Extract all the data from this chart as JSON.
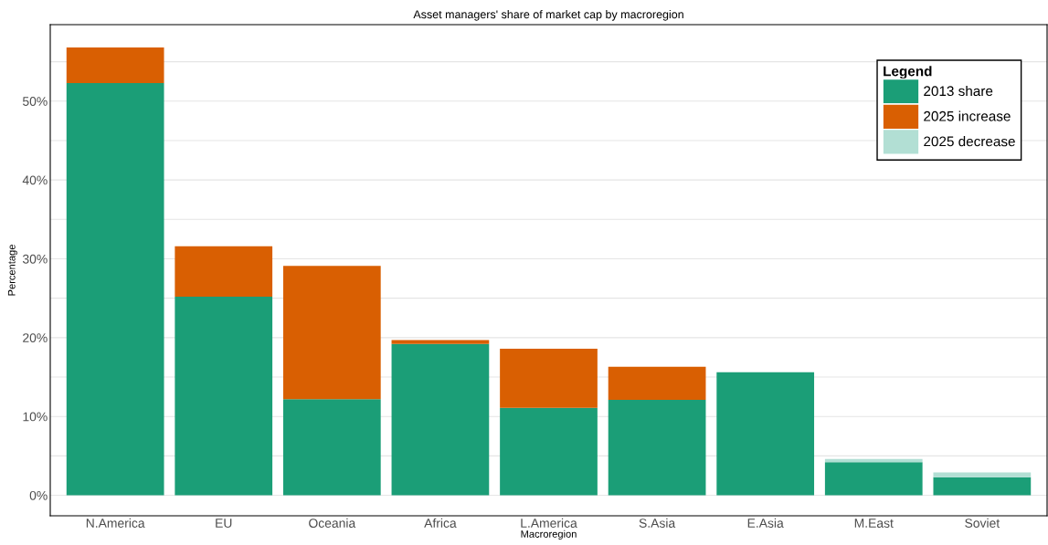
{
  "chart_data": {
    "type": "bar",
    "stacked": true,
    "title": "Asset managers' share of market cap by macroregion",
    "xlabel": "Macroregion",
    "ylabel": "Percentage",
    "legend_title": "Legend",
    "legend": "top right",
    "grid": "y",
    "categories": [
      "N.America",
      "EU",
      "Oceania",
      "Africa",
      "L.America",
      "S.Asia",
      "E.Asia",
      "M.East",
      "Soviet"
    ],
    "series": [
      {
        "name": "2013 share",
        "color": "#1b9e77",
        "values": [
          52.3,
          25.2,
          12.2,
          19.2,
          11.1,
          12.1,
          15.6,
          4.2,
          2.3
        ]
      },
      {
        "name": "2025 increase",
        "color": "#d95f02",
        "values": [
          4.5,
          6.4,
          16.9,
          0.5,
          7.5,
          4.2,
          null,
          null,
          null
        ]
      },
      {
        "name": "2025 decrease",
        "color": "#b2dfd4",
        "values": [
          null,
          null,
          null,
          null,
          null,
          null,
          null,
          0.4,
          0.6
        ]
      }
    ],
    "ylim": [
      -2.6,
      59.7
    ],
    "yticks": [
      {
        "value": 0,
        "label": "0%"
      },
      {
        "value": 5,
        "label": null
      },
      {
        "value": 10,
        "label": "10%"
      },
      {
        "value": 15,
        "label": null
      },
      {
        "value": 20,
        "label": "20%"
      },
      {
        "value": 25,
        "label": null
      },
      {
        "value": 30,
        "label": "30%"
      },
      {
        "value": 35,
        "label": null
      },
      {
        "value": 40,
        "label": "40%"
      },
      {
        "value": 45,
        "label": null
      },
      {
        "value": 50,
        "label": "50%"
      },
      {
        "value": 55,
        "label": null
      }
    ]
  }
}
